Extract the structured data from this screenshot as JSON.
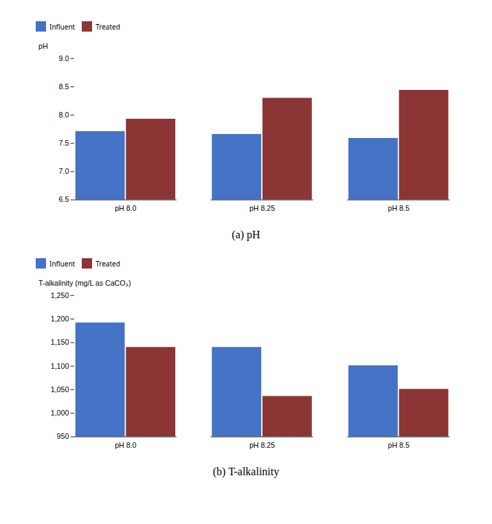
{
  "chart_data": [
    {
      "type": "bar",
      "title": "(a)  pH",
      "categories": [
        "pH 8.0",
        "pH 8.25",
        "pH 8.5"
      ],
      "series": [
        {
          "name": "Influent",
          "color": "#4472C4",
          "values": [
            7.71,
            7.66,
            7.59
          ]
        },
        {
          "name": "Treated",
          "color": "#8B3535",
          "values": [
            7.93,
            8.3,
            8.44
          ]
        }
      ],
      "y_label": "pH",
      "ylim": [
        6.5,
        9.0
      ],
      "yticks": [
        6.5,
        {
          "value": 7.0,
          "label": "7.0"
        },
        7.5,
        {
          "value": 8.0,
          "label": "8.0"
        },
        8.5,
        {
          "value": 9.0,
          "label": "9.0"
        }
      ],
      "legend": "upper left",
      "grid": false
    },
    {
      "type": "bar",
      "title": "(b)  T-alkalinity",
      "categories": [
        "pH 8.0",
        "pH 8.25",
        "pH 8.5"
      ],
      "series": [
        {
          "name": "Influent",
          "color": "#4472C4",
          "values": [
            1192,
            1140,
            1101
          ]
        },
        {
          "name": "Treated",
          "color": "#8B3535",
          "values": [
            1140,
            1036,
            1051
          ]
        }
      ],
      "y_label": "T-alkalinity (mg/L as CaCO₃)",
      "ylim": [
        950,
        1250
      ],
      "yticks": [
        950,
        {
          "value": 1000,
          "label": "1,000"
        },
        {
          "value": 1050,
          "label": "1,050"
        },
        {
          "value": 1100,
          "label": "1,100"
        },
        {
          "value": 1150,
          "label": "1,150"
        },
        {
          "value": 1200,
          "label": "1,200"
        },
        {
          "value": 1250,
          "label": "1,250"
        }
      ],
      "legend": "upper left",
      "grid": false
    }
  ]
}
